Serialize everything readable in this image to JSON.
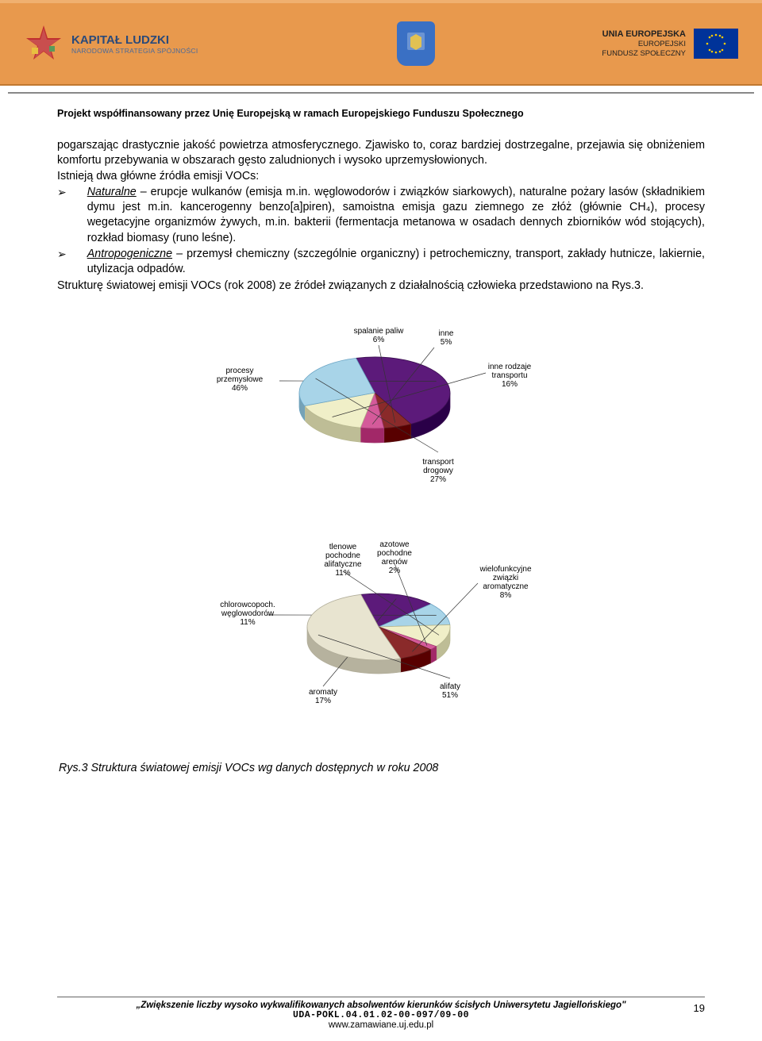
{
  "header": {
    "logo_title": "KAPITAŁ LUDZKI",
    "logo_sub": "NARODOWA STRATEGIA SPÓJNOŚCI",
    "right_bold1": "UNIA EUROPEJSKA",
    "right_line2": "EUROPEJSKI",
    "right_line3": "FUNDUSZ SPOŁECZNY"
  },
  "project_line": "Projekt współfinansowany przez Unię Europejską w ramach Europejskiego Funduszu Społecznego",
  "para1": "pogarszając drastycznie jakość powietrza atmosferycznego. Zjawisko to, coraz bardziej dostrzegalne, przejawia się obniżeniem komfortu przebywania w obszarach gęsto zaludnionych i wysoko uprzemysłowionych.",
  "para2": "Istnieją dwa główne źródła emisji VOCs:",
  "bullet1_label": "Naturalne",
  "bullet1_rest": " – erupcje wulkanów (emisja m.in. węglowodorów i związków siarkowych), naturalne pożary lasów (składnikiem dymu jest m.in. kancerogenny benzo[a]piren), samoistna emisja gazu ziemnego ze złóż (głównie CH₄), procesy wegetacyjne organizmów żywych, m.in. bakterii (fermentacja metanowa w osadach dennych zbiorników wód stojących), rozkład biomasy (runo leśne).",
  "bullet2_label": "Antropogeniczne",
  "bullet2_rest": " – przemysł chemiczny (szczególnie organiczny) i petrochemiczny, transport, zakłady hutnicze, lakiernie, utylizacja odpadów.",
  "para3": "Strukturę światowej emisji VOCs (rok 2008) ze źródeł związanych z działalnością człowieka przedstawiono na Rys.3.",
  "chart1": {
    "type": "pie",
    "slices": [
      {
        "label": "procesy przemysłowe",
        "pct": "46%",
        "value": 46,
        "color": "#5c1a7a",
        "stroke": "#3a0f50"
      },
      {
        "label": "spalanie paliw",
        "pct": "6%",
        "value": 6,
        "color": "#8a2a2a",
        "stroke": "#5a1a1a"
      },
      {
        "label": "inne",
        "pct": "5%",
        "value": 5,
        "color": "#d45a9a",
        "stroke": "#a03a70"
      },
      {
        "label": "inne rodzaje transportu",
        "pct": "16%",
        "value": 16,
        "color": "#f0efc8",
        "stroke": "#b8b890"
      },
      {
        "label": "transport drogowy",
        "pct": "27%",
        "value": 27,
        "color": "#a8d4e8",
        "stroke": "#6aa4c4"
      }
    ],
    "label_fontsize": 10,
    "depth_color_shift": "-30%",
    "background_color": "#ffffff"
  },
  "chart2": {
    "type": "pie",
    "slices": [
      {
        "label": "aromaty",
        "pct": "17%",
        "value": 17,
        "color": "#5c1a7a",
        "stroke": "#3a0f50"
      },
      {
        "label": "chlorowcopoch. węglowodorów",
        "pct": "11%",
        "value": 11,
        "color": "#a8d4e8",
        "stroke": "#6aa4c4"
      },
      {
        "label": "tlenowe pochodne alifatyczne",
        "pct": "11%",
        "value": 11,
        "color": "#f0efc8",
        "stroke": "#b8b890"
      },
      {
        "label": "tlenowe i azotowe pochodne arenów",
        "pct": "2%",
        "value": 2,
        "color": "#d45a9a",
        "stroke": "#a03a70"
      },
      {
        "label": "wielofunkcyjne związki aromatyczne",
        "pct": "8%",
        "value": 8,
        "color": "#8a2a2a",
        "stroke": "#5a1a1a"
      },
      {
        "label": "alifaty",
        "pct": "51%",
        "value": 51,
        "color": "#e8e4d0",
        "stroke": "#b0ac98"
      }
    ],
    "label_fontsize": 10,
    "depth_color_shift": "-30%",
    "background_color": "#ffffff"
  },
  "caption": "Rys.3 Struktura światowej emisji VOCs wg danych dostępnych w roku 2008",
  "footer": {
    "line1": "„Zwiększenie liczby wysoko wykwalifikowanych absolwentów kierunków ścisłych Uniwersytetu Jagiellońskiego\"",
    "code": "UDA-POKL.04.01.02-00-097/09-00",
    "url": "www.zamawiane.uj.edu.pl",
    "page": "19"
  },
  "colors": {
    "header_bg": "#e8994d",
    "header_top_border": "#f0b070",
    "header_bottom_border": "#c07830",
    "kapital_title": "#2a4a7a",
    "shield_bg": "#3a70c4",
    "eu_flag_bg": "#003399",
    "eu_star": "#ffcc00",
    "hr": "#888888"
  }
}
